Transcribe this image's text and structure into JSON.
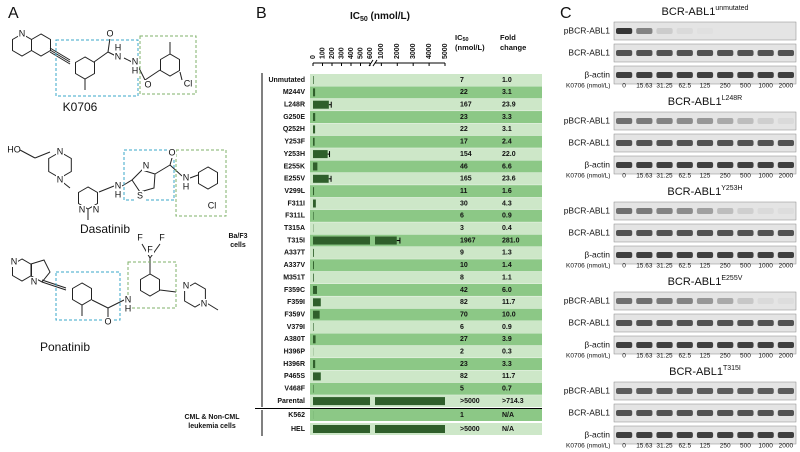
{
  "panel_labels": [
    "A",
    "B",
    "C"
  ],
  "panel_a": {
    "compounds": [
      {
        "name": "K0706",
        "atoms": [
          "N",
          "O",
          "H",
          "N",
          "N",
          "H",
          "O",
          "Cl"
        ]
      },
      {
        "name": "Dasatinib",
        "atoms": [
          "HO",
          "N",
          "N",
          "N",
          "N",
          "N",
          "H",
          "S",
          "N",
          "O",
          "N",
          "H",
          "Cl"
        ]
      },
      {
        "name": "Ponatinib",
        "atoms": [
          "N",
          "N",
          "O",
          "N",
          "H",
          "F",
          "F",
          "F",
          "N",
          "N"
        ]
      }
    ]
  },
  "chart_data": {
    "type": "bar",
    "orientation": "horizontal",
    "x_label": {
      "main": "IC",
      "sub": "50",
      "unit": " (nmol/L)"
    },
    "column_headers": {
      "ic50": {
        "main": "IC",
        "sub": "50",
        "unit": "(nmol/L)"
      },
      "fold": [
        "Fold",
        "change"
      ]
    },
    "groups": [
      {
        "label": [
          "Ba/F3",
          "cells"
        ]
      },
      {
        "label": [
          "CML & Non-CML",
          "leukemia cells"
        ]
      }
    ],
    "categories": [
      "Unmutated",
      "M244V",
      "L248R",
      "G250E",
      "Q252H",
      "Y253F",
      "Y253H",
      "E255K",
      "E255V",
      "V299L",
      "F311I",
      "F311L",
      "T315A",
      "T315I",
      "A337T",
      "A337V",
      "M351T",
      "F359C",
      "F359I",
      "F359V",
      "V379I",
      "A380T",
      "H396P",
      "H396R",
      "P465S",
      "V468F",
      "Parental",
      "K562",
      "HEL"
    ],
    "values": [
      7,
      22,
      167,
      23,
      22,
      17,
      154,
      46,
      165,
      11,
      30,
      6,
      3,
      1967,
      9,
      10,
      8,
      42,
      82,
      70,
      6,
      27,
      2,
      23,
      82,
      5,
      5000,
      1,
      5000
    ],
    "value_labels": [
      null,
      null,
      null,
      null,
      null,
      null,
      null,
      null,
      null,
      null,
      null,
      null,
      null,
      null,
      null,
      null,
      null,
      null,
      null,
      null,
      null,
      null,
      null,
      null,
      null,
      null,
      ">5000",
      null,
      ">5000"
    ],
    "errors": [
      null,
      null,
      25,
      null,
      null,
      null,
      20,
      null,
      25,
      null,
      null,
      null,
      null,
      200,
      null,
      null,
      null,
      null,
      null,
      null,
      null,
      null,
      null,
      null,
      null,
      null,
      null,
      null,
      null
    ],
    "fold_change": [
      "1.0",
      "3.1",
      "23.9",
      "3.3",
      "3.1",
      "2.4",
      "22.0",
      "6.6",
      "23.6",
      "1.6",
      "4.3",
      "0.9",
      "0.4",
      "281.0",
      "1.3",
      "1.4",
      "1.1",
      "6.0",
      "11.7",
      "10.0",
      "0.9",
      "3.9",
      "0.3",
      "3.3",
      "11.7",
      "0.7",
      ">714.3",
      "N/A",
      "N/A"
    ],
    "xlim": [
      0,
      600
    ],
    "xticks": [
      0,
      100,
      200,
      300,
      400,
      500,
      600
    ],
    "x2lim": [
      600,
      5000
    ],
    "x2ticks": [
      1000,
      2000,
      3000,
      4000,
      5000
    ],
    "color": "#2f5f2b",
    "row_colors": [
      "#cde7c8",
      "#8cc886"
    ]
  },
  "panel_c": {
    "blots": [
      {
        "title": "BCR-ABL1",
        "superscript": "unmutated"
      },
      {
        "title": "BCR-ABL1",
        "superscript": "L248R"
      },
      {
        "title": "BCR-ABL1",
        "superscript": "Y253H"
      },
      {
        "title": "BCR-ABL1",
        "superscript": "E255V"
      },
      {
        "title": "BCR-ABL1",
        "superscript": "T315I"
      }
    ],
    "row_labels": [
      "pBCR-ABL1",
      "BCR-ABL1",
      "β-actin"
    ],
    "dose_label": "K0706 (nmol/L)",
    "doses": [
      0,
      15.63,
      31.25,
      62.5,
      125,
      250,
      500,
      1000,
      2000
    ]
  }
}
